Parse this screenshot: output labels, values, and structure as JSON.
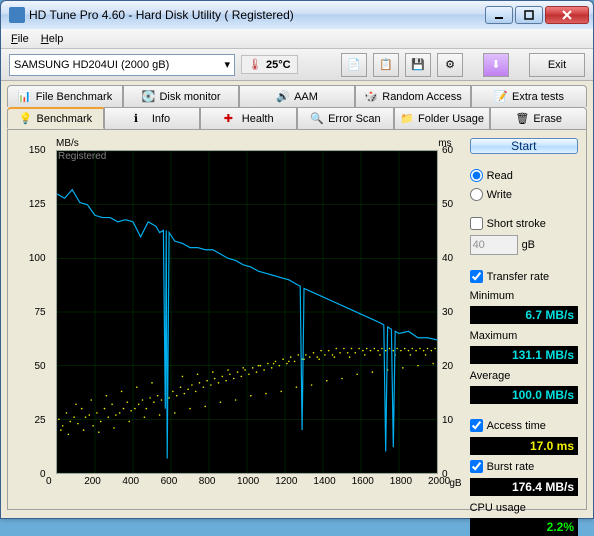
{
  "window": {
    "title": "HD Tune Pro 4.60 - Hard Disk Utility (  Registered)"
  },
  "menu": {
    "file": "File",
    "help": "Help"
  },
  "toolbar": {
    "drive": "SAMSUNG HD204UI (2000 gB)",
    "temp": "25°C",
    "exit": "Exit"
  },
  "tabs1": {
    "file_benchmark": "File Benchmark",
    "disk_monitor": "Disk monitor",
    "aam": "AAM",
    "random_access": "Random Access",
    "extra_tests": "Extra tests"
  },
  "tabs2": {
    "benchmark": "Benchmark",
    "info": "Info",
    "health": "Health",
    "error_scan": "Error Scan",
    "folder_usage": "Folder Usage",
    "erase": "Erase"
  },
  "side": {
    "start": "Start",
    "read": "Read",
    "write": "Write",
    "short_stroke": "Short stroke",
    "stroke_val": "40",
    "stroke_unit": "gB",
    "transfer_rate": "Transfer rate",
    "min_label": "Minimum",
    "min_val": "6.7 MB/s",
    "max_label": "Maximum",
    "max_val": "131.1 MB/s",
    "avg_label": "Average",
    "avg_val": "100.0 MB/s",
    "access_time": "Access time",
    "access_val": "17.0 ms",
    "burst_rate": "Burst rate",
    "burst_val": "176.4 MB/s",
    "cpu_label": "CPU usage",
    "cpu_val": "2.2%"
  },
  "chart": {
    "y1_label": "MB/s",
    "y2_label": "ms",
    "x_unit": "gB",
    "watermark": "Registered",
    "y1_ticks": [
      0,
      25,
      50,
      75,
      100,
      125,
      150
    ],
    "y1_max": 150,
    "y2_ticks": [
      0,
      10,
      20,
      30,
      40,
      50,
      60
    ],
    "y2_max": 60,
    "x_ticks": [
      0,
      200,
      400,
      600,
      800,
      1000,
      1200,
      1400,
      1600,
      1800,
      2000
    ],
    "x_max": 2000,
    "line_color": "#00b0f0",
    "scatter_color": "#f0f000",
    "grid_color": "#004000",
    "bg": "#000000",
    "transfer_line": [
      [
        0,
        130
      ],
      [
        40,
        128
      ],
      [
        80,
        132
      ],
      [
        120,
        126
      ],
      [
        160,
        125
      ],
      [
        200,
        120
      ],
      [
        240,
        119
      ],
      [
        280,
        119
      ],
      [
        320,
        117
      ],
      [
        360,
        118
      ],
      [
        400,
        117
      ],
      [
        440,
        110
      ],
      [
        480,
        117
      ],
      [
        520,
        115
      ],
      [
        540,
        112
      ],
      [
        560,
        113
      ],
      [
        570,
        30
      ],
      [
        575,
        113
      ],
      [
        580,
        6.7
      ],
      [
        590,
        112
      ],
      [
        620,
        108
      ],
      [
        660,
        107
      ],
      [
        700,
        105
      ],
      [
        740,
        105
      ],
      [
        780,
        104
      ],
      [
        820,
        104
      ],
      [
        860,
        102
      ],
      [
        900,
        100
      ],
      [
        940,
        99
      ],
      [
        980,
        97
      ],
      [
        1020,
        96
      ],
      [
        1060,
        94
      ],
      [
        1100,
        93
      ],
      [
        1140,
        92
      ],
      [
        1180,
        91
      ],
      [
        1220,
        90
      ],
      [
        1260,
        88
      ],
      [
        1280,
        87
      ],
      [
        1290,
        20
      ],
      [
        1300,
        86
      ],
      [
        1350,
        84
      ],
      [
        1400,
        82
      ],
      [
        1450,
        80
      ],
      [
        1500,
        78
      ],
      [
        1550,
        76
      ],
      [
        1600,
        74
      ],
      [
        1650,
        72
      ],
      [
        1700,
        70
      ],
      [
        1720,
        69
      ],
      [
        1730,
        10
      ],
      [
        1740,
        68
      ],
      [
        1760,
        67
      ],
      [
        1770,
        12
      ],
      [
        1780,
        66
      ],
      [
        1800,
        65
      ],
      [
        1850,
        66
      ],
      [
        1900,
        63
      ],
      [
        1950,
        63
      ],
      [
        2000,
        62
      ]
    ],
    "scatter": [
      [
        10,
        25
      ],
      [
        30,
        22
      ],
      [
        50,
        28
      ],
      [
        70,
        24
      ],
      [
        90,
        26
      ],
      [
        110,
        23
      ],
      [
        130,
        30
      ],
      [
        150,
        26
      ],
      [
        170,
        27
      ],
      [
        190,
        22
      ],
      [
        210,
        28
      ],
      [
        230,
        24
      ],
      [
        250,
        30
      ],
      [
        270,
        26
      ],
      [
        290,
        32
      ],
      [
        310,
        27
      ],
      [
        330,
        28
      ],
      [
        350,
        30
      ],
      [
        370,
        33
      ],
      [
        390,
        29
      ],
      [
        410,
        30
      ],
      [
        430,
        32
      ],
      [
        450,
        34
      ],
      [
        470,
        30
      ],
      [
        490,
        35
      ],
      [
        510,
        33
      ],
      [
        530,
        36
      ],
      [
        550,
        34
      ],
      [
        570,
        37
      ],
      [
        590,
        35
      ],
      [
        610,
        38
      ],
      [
        630,
        36
      ],
      [
        650,
        40
      ],
      [
        670,
        37
      ],
      [
        690,
        39
      ],
      [
        710,
        41
      ],
      [
        730,
        38
      ],
      [
        750,
        42
      ],
      [
        770,
        40
      ],
      [
        790,
        43
      ],
      [
        810,
        41
      ],
      [
        830,
        44
      ],
      [
        850,
        42
      ],
      [
        870,
        45
      ],
      [
        890,
        43
      ],
      [
        910,
        46
      ],
      [
        930,
        44
      ],
      [
        950,
        47
      ],
      [
        970,
        45
      ],
      [
        990,
        48
      ],
      [
        1010,
        46
      ],
      [
        1030,
        49
      ],
      [
        1050,
        47
      ],
      [
        1070,
        50
      ],
      [
        1090,
        48
      ],
      [
        1110,
        51
      ],
      [
        1130,
        49
      ],
      [
        1150,
        52
      ],
      [
        1170,
        50
      ],
      [
        1190,
        53
      ],
      [
        1210,
        51
      ],
      [
        1230,
        54
      ],
      [
        1250,
        52
      ],
      [
        1270,
        55
      ],
      [
        1290,
        53
      ],
      [
        1310,
        55
      ],
      [
        1330,
        54
      ],
      [
        1350,
        56
      ],
      [
        1370,
        54
      ],
      [
        1390,
        57
      ],
      [
        1410,
        55
      ],
      [
        1430,
        57
      ],
      [
        1450,
        55
      ],
      [
        1470,
        58
      ],
      [
        1490,
        56
      ],
      [
        1510,
        58
      ],
      [
        1530,
        56
      ],
      [
        1550,
        58
      ],
      [
        1570,
        56
      ],
      [
        1590,
        58
      ],
      [
        1610,
        57
      ],
      [
        1630,
        58
      ],
      [
        1650,
        57
      ],
      [
        1670,
        58
      ],
      [
        1690,
        57
      ],
      [
        1710,
        58
      ],
      [
        1730,
        57
      ],
      [
        1750,
        58
      ],
      [
        1770,
        57
      ],
      [
        1790,
        58
      ],
      [
        1810,
        57
      ],
      [
        1830,
        58
      ],
      [
        1850,
        57
      ],
      [
        1870,
        58
      ],
      [
        1890,
        57
      ],
      [
        1910,
        58
      ],
      [
        1930,
        57
      ],
      [
        1950,
        58
      ],
      [
        1970,
        57
      ],
      [
        1990,
        58
      ],
      [
        20,
        20
      ],
      [
        60,
        18
      ],
      [
        100,
        32
      ],
      [
        140,
        20
      ],
      [
        180,
        34
      ],
      [
        220,
        19
      ],
      [
        260,
        36
      ],
      [
        300,
        21
      ],
      [
        340,
        38
      ],
      [
        380,
        24
      ],
      [
        420,
        40
      ],
      [
        460,
        26
      ],
      [
        500,
        42
      ],
      [
        540,
        27
      ],
      [
        580,
        44
      ],
      [
        620,
        28
      ],
      [
        660,
        45
      ],
      [
        700,
        30
      ],
      [
        740,
        46
      ],
      [
        780,
        31
      ],
      [
        820,
        47
      ],
      [
        860,
        33
      ],
      [
        900,
        48
      ],
      [
        940,
        34
      ],
      [
        980,
        49
      ],
      [
        1020,
        36
      ],
      [
        1060,
        50
      ],
      [
        1100,
        37
      ],
      [
        1140,
        51
      ],
      [
        1180,
        38
      ],
      [
        1220,
        52
      ],
      [
        1260,
        40
      ],
      [
        1300,
        53
      ],
      [
        1340,
        41
      ],
      [
        1380,
        53
      ],
      [
        1420,
        43
      ],
      [
        1460,
        54
      ],
      [
        1500,
        44
      ],
      [
        1540,
        54
      ],
      [
        1580,
        46
      ],
      [
        1620,
        55
      ],
      [
        1660,
        47
      ],
      [
        1700,
        55
      ],
      [
        1740,
        48
      ],
      [
        1780,
        55
      ],
      [
        1820,
        49
      ],
      [
        1860,
        55
      ],
      [
        1900,
        50
      ],
      [
        1940,
        55
      ],
      [
        1980,
        51
      ]
    ]
  }
}
